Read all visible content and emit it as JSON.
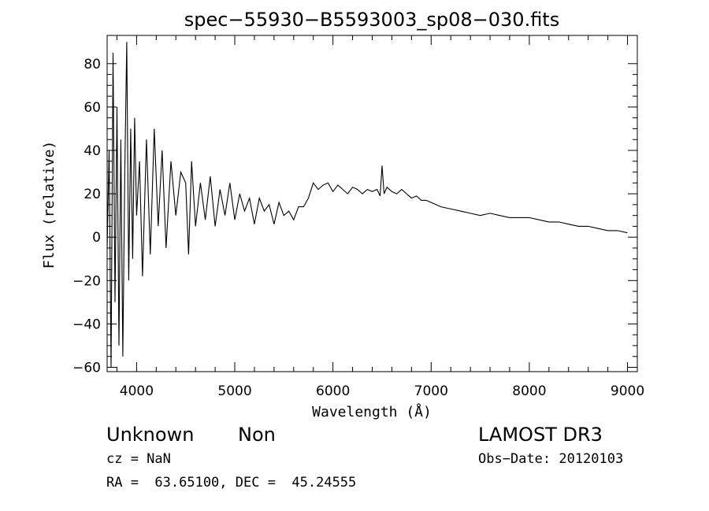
{
  "chart_data": {
    "type": "line",
    "title": "spec−55930−B5593003_sp08−030.fits",
    "xlabel": "Wavelength (Å)",
    "ylabel": "Flux (relative)",
    "xlim": [
      3700,
      9100
    ],
    "ylim": [
      -62,
      93
    ],
    "xticks": [
      4000,
      5000,
      6000,
      7000,
      8000,
      9000
    ],
    "xtick_labels": [
      "4000",
      "5000",
      "6000",
      "7000",
      "8000",
      "9000"
    ],
    "yticks": [
      -60,
      -40,
      -20,
      0,
      20,
      40,
      60,
      80
    ],
    "ytick_labels": [
      "−60",
      "−40",
      "−20",
      "0",
      "20",
      "40",
      "60",
      "80"
    ],
    "grid": false,
    "series": [
      {
        "name": "flux",
        "x": [
          3700,
          3720,
          3740,
          3760,
          3780,
          3800,
          3820,
          3840,
          3860,
          3880,
          3900,
          3920,
          3940,
          3960,
          3980,
          4000,
          4030,
          4060,
          4100,
          4140,
          4180,
          4220,
          4260,
          4300,
          4350,
          4400,
          4450,
          4500,
          4530,
          4560,
          4600,
          4650,
          4700,
          4750,
          4800,
          4850,
          4900,
          4950,
          5000,
          5050,
          5100,
          5150,
          5200,
          5250,
          5300,
          5350,
          5400,
          5450,
          5500,
          5550,
          5600,
          5650,
          5700,
          5750,
          5800,
          5850,
          5900,
          5950,
          6000,
          6050,
          6100,
          6150,
          6200,
          6250,
          6300,
          6350,
          6400,
          6450,
          6480,
          6500,
          6520,
          6550,
          6600,
          6650,
          6700,
          6750,
          6800,
          6850,
          6900,
          6950,
          7000,
          7100,
          7200,
          7300,
          7400,
          7500,
          7600,
          7700,
          7800,
          7900,
          8000,
          8100,
          8200,
          8300,
          8400,
          8500,
          8600,
          8700,
          8800,
          8900,
          9000
        ],
        "values": [
          -5,
          40,
          -60,
          85,
          -30,
          60,
          -50,
          45,
          -55,
          30,
          90,
          -20,
          50,
          -10,
          55,
          10,
          35,
          -18,
          45,
          -8,
          50,
          5,
          40,
          -5,
          35,
          10,
          30,
          25,
          -8,
          35,
          5,
          25,
          8,
          28,
          5,
          22,
          10,
          25,
          8,
          20,
          12,
          18,
          6,
          18,
          12,
          15,
          6,
          16,
          10,
          12,
          8,
          14,
          14,
          18,
          25,
          22,
          24,
          25,
          21,
          24,
          22,
          20,
          23,
          22,
          20,
          22,
          21,
          22,
          19,
          33,
          20,
          23,
          21,
          20,
          22,
          20,
          18,
          19,
          17,
          17,
          16,
          14,
          13,
          12,
          11,
          10,
          11,
          10,
          9,
          9,
          9,
          8,
          7,
          7,
          6,
          5,
          5,
          4,
          3,
          3,
          2
        ]
      }
    ]
  },
  "footer": {
    "object_type": "Unknown",
    "subclass": "Non",
    "cz": "cz = NaN",
    "coords": "RA =  63.65100, DEC =  45.24555",
    "survey": "LAMOST DR3",
    "obs_date": "Obs−Date: 20120103"
  }
}
